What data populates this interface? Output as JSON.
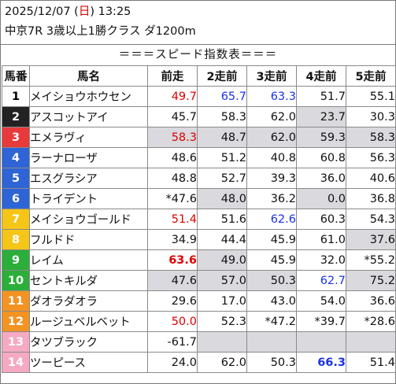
{
  "header": {
    "date_prefix": "2025/12/07 (",
    "weekday": "日",
    "date_suffix": ") 13:25",
    "race": "中京7R 3歳以上1勝クラス ダ1200m"
  },
  "banner": "＝＝＝スピード指数表＝＝＝",
  "columns": [
    "馬番",
    "馬名",
    "前走",
    "2走前",
    "3走前",
    "4走前",
    "5走前"
  ],
  "colors": {
    "red_value": "#e00000",
    "blue_value": "#1a33e6",
    "gray_cell": "#d9d9de"
  },
  "rows": [
    {
      "num": "1",
      "num_bg": "#ffffff",
      "num_fg": "#000000",
      "name": "メイショウホウセン",
      "v": [
        "49.7",
        "65.7",
        "63.3",
        "51.7",
        "55.1"
      ],
      "c": [
        "red",
        "blue",
        "blue",
        "",
        ""
      ],
      "b": [
        false,
        false,
        false,
        false,
        false
      ],
      "g": [
        false,
        false,
        false,
        false,
        false
      ]
    },
    {
      "num": "2",
      "num_bg": "#222222",
      "num_fg": "#ffffff",
      "name": "アスコットアイ",
      "v": [
        "45.7",
        "58.3",
        "62.0",
        "23.7",
        "30.3"
      ],
      "c": [
        "",
        "",
        "",
        "",
        ""
      ],
      "b": [
        false,
        false,
        false,
        false,
        false
      ],
      "g": [
        false,
        false,
        false,
        true,
        false
      ]
    },
    {
      "num": "3",
      "num_bg": "#e8393b",
      "num_fg": "#ffffff",
      "name": "エメラヴィ",
      "v": [
        "58.3",
        "48.7",
        "62.0",
        "59.3",
        "58.3"
      ],
      "c": [
        "red",
        "",
        "",
        "",
        ""
      ],
      "b": [
        false,
        false,
        false,
        false,
        false
      ],
      "g": [
        true,
        true,
        true,
        true,
        true
      ]
    },
    {
      "num": "4",
      "num_bg": "#2e64d6",
      "num_fg": "#ffffff",
      "name": "ラーナローザ",
      "v": [
        "48.6",
        "51.2",
        "40.8",
        "60.8",
        "56.3"
      ],
      "c": [
        "",
        "",
        "",
        "",
        ""
      ],
      "b": [
        false,
        false,
        false,
        false,
        false
      ],
      "g": [
        false,
        false,
        false,
        false,
        false
      ]
    },
    {
      "num": "5",
      "num_bg": "#2e64d6",
      "num_fg": "#ffffff",
      "name": "エスグラシア",
      "v": [
        "48.8",
        "52.7",
        "39.3",
        "36.0",
        "40.6"
      ],
      "c": [
        "",
        "",
        "",
        "",
        ""
      ],
      "b": [
        false,
        false,
        false,
        false,
        false
      ],
      "g": [
        false,
        false,
        false,
        false,
        false
      ]
    },
    {
      "num": "6",
      "num_bg": "#2e64d6",
      "num_fg": "#ffffff",
      "name": "トライデント",
      "v": [
        "*47.6",
        "48.0",
        "36.2",
        "0.0",
        "36.8"
      ],
      "c": [
        "",
        "",
        "",
        "",
        ""
      ],
      "b": [
        false,
        false,
        false,
        false,
        false
      ],
      "g": [
        false,
        true,
        false,
        true,
        false
      ]
    },
    {
      "num": "7",
      "num_bg": "#f5c518",
      "num_fg": "#ffffff",
      "name": "メイショウゴールド",
      "v": [
        "51.4",
        "51.6",
        "62.6",
        "60.3",
        "54.3"
      ],
      "c": [
        "red",
        "",
        "blue",
        "",
        ""
      ],
      "b": [
        false,
        false,
        false,
        false,
        false
      ],
      "g": [
        false,
        false,
        false,
        false,
        false
      ]
    },
    {
      "num": "8",
      "num_bg": "#f5c518",
      "num_fg": "#ffffff",
      "name": "フルドド",
      "v": [
        "34.9",
        "44.4",
        "45.9",
        "61.0",
        "37.6"
      ],
      "c": [
        "",
        "",
        "",
        "",
        ""
      ],
      "b": [
        false,
        false,
        false,
        false,
        false
      ],
      "g": [
        false,
        false,
        false,
        false,
        true
      ]
    },
    {
      "num": "9",
      "num_bg": "#2cae3a",
      "num_fg": "#ffffff",
      "name": "レイム",
      "v": [
        "63.6",
        "49.0",
        "45.9",
        "32.0",
        "*55.2"
      ],
      "c": [
        "red",
        "",
        "",
        "",
        ""
      ],
      "b": [
        true,
        false,
        false,
        false,
        false
      ],
      "g": [
        false,
        true,
        false,
        false,
        false
      ]
    },
    {
      "num": "10",
      "num_bg": "#2cae3a",
      "num_fg": "#ffffff",
      "name": "セントキルダ",
      "v": [
        "47.6",
        "57.0",
        "50.3",
        "62.7",
        "75.2"
      ],
      "c": [
        "",
        "",
        "",
        "blue",
        ""
      ],
      "b": [
        false,
        false,
        false,
        false,
        false
      ],
      "g": [
        true,
        true,
        true,
        false,
        true
      ]
    },
    {
      "num": "11",
      "num_bg": "#f39321",
      "num_fg": "#ffffff",
      "name": "ダオラダオラ",
      "v": [
        "29.6",
        "17.0",
        "43.0",
        "54.0",
        "36.6"
      ],
      "c": [
        "",
        "",
        "",
        "",
        ""
      ],
      "b": [
        false,
        false,
        false,
        false,
        false
      ],
      "g": [
        false,
        false,
        false,
        false,
        false
      ]
    },
    {
      "num": "12",
      "num_bg": "#f39321",
      "num_fg": "#ffffff",
      "name": "ルージュベルベット",
      "v": [
        "50.0",
        "52.3",
        "*47.2",
        "*39.7",
        "*28.6"
      ],
      "c": [
        "red",
        "",
        "",
        "",
        ""
      ],
      "b": [
        false,
        false,
        false,
        false,
        false
      ],
      "g": [
        false,
        false,
        false,
        false,
        false
      ]
    },
    {
      "num": "13",
      "num_bg": "#f5a9c2",
      "num_fg": "#ffffff",
      "name": "タツブラック",
      "v": [
        "-61.7",
        "",
        "",
        "",
        ""
      ],
      "c": [
        "",
        "",
        "",
        "",
        ""
      ],
      "b": [
        false,
        false,
        false,
        false,
        false
      ],
      "g": [
        false,
        true,
        true,
        true,
        true
      ]
    },
    {
      "num": "14",
      "num_bg": "#f5a9c2",
      "num_fg": "#ffffff",
      "name": "ツーピース",
      "v": [
        "24.0",
        "62.0",
        "50.3",
        "66.3",
        "51.4"
      ],
      "c": [
        "",
        "",
        "",
        "blue",
        ""
      ],
      "b": [
        false,
        false,
        false,
        true,
        false
      ],
      "g": [
        false,
        false,
        false,
        false,
        false
      ]
    }
  ]
}
